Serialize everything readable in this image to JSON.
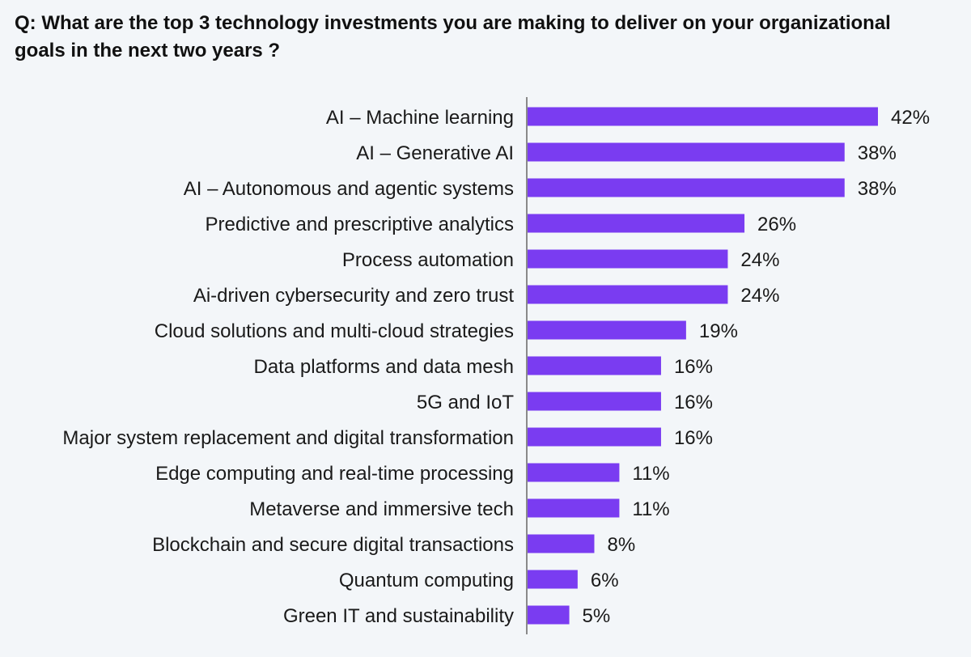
{
  "question": "Q: What are the top 3 technology investments you are making to deliver on your organizational goals in the next two years ?",
  "colors": {
    "bar": "#7a3cf1",
    "axis": "#8a8a8a",
    "background": "#f3f6f9"
  },
  "chart_data": {
    "type": "bar",
    "orientation": "horizontal",
    "title": "Q: What are the top 3 technology investments you are making to deliver on your organizational goals in the next two years ?",
    "categories": [
      "AI – Machine learning",
      "AI – Generative AI",
      "AI – Autonomous and agentic systems",
      "Predictive and prescriptive analytics",
      "Process automation",
      "Ai-driven cybersecurity and zero trust",
      "Cloud solutions and multi-cloud strategies",
      "Data platforms and data mesh",
      "5G and IoT",
      "Major system replacement and digital transformation",
      "Edge computing and real-time processing",
      "Metaverse and immersive tech",
      "Blockchain and secure digital transactions",
      "Quantum computing",
      "Green IT and sustainability"
    ],
    "values": [
      42,
      38,
      38,
      26,
      24,
      24,
      19,
      16,
      16,
      16,
      11,
      11,
      8,
      6,
      5
    ],
    "value_labels": [
      "42%",
      "38%",
      "38%",
      "26%",
      "24%",
      "24%",
      "19%",
      "16%",
      "16%",
      "16%",
      "11%",
      "11%",
      "8%",
      "6%",
      "5%"
    ],
    "xlim": [
      0,
      42
    ],
    "grid": false,
    "legend": "none"
  }
}
